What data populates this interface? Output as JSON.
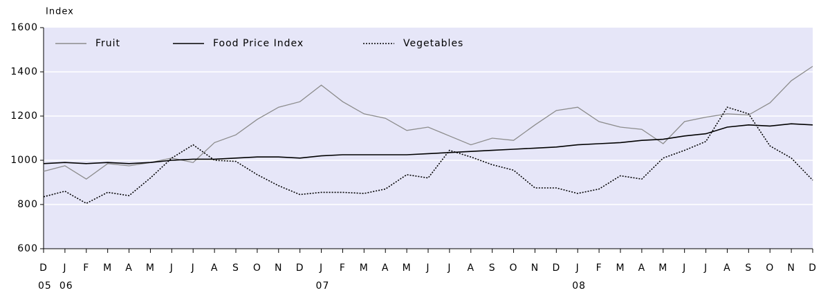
{
  "chart_data": {
    "type": "line",
    "y_label": "Index",
    "categories": [
      "D",
      "J",
      "F",
      "M",
      "A",
      "M",
      "J",
      "J",
      "A",
      "S",
      "O",
      "N",
      "D",
      "J",
      "F",
      "M",
      "A",
      "M",
      "J",
      "J",
      "A",
      "S",
      "O",
      "N",
      "D",
      "J",
      "F",
      "M",
      "A",
      "M",
      "J",
      "J",
      "A",
      "S",
      "O",
      "N",
      "D"
    ],
    "years": [
      "05",
      "06",
      null,
      null,
      null,
      null,
      null,
      null,
      null,
      null,
      null,
      null,
      null,
      "07",
      null,
      null,
      null,
      null,
      null,
      null,
      null,
      null,
      null,
      null,
      null,
      "08",
      null,
      null,
      null,
      null,
      null,
      null,
      null,
      null,
      null,
      null,
      null
    ],
    "ylim": [
      600,
      1600
    ],
    "yticks": [
      600,
      800,
      1000,
      1200,
      1400,
      1600
    ],
    "grid": true,
    "legend": "top-left",
    "series": [
      {
        "name": "Fruit",
        "color": "#8c8c8c",
        "style": "solid",
        "values": [
          950,
          975,
          915,
          985,
          975,
          990,
          1010,
          990,
          1080,
          1115,
          1185,
          1240,
          1265,
          1340,
          1265,
          1210,
          1190,
          1135,
          1150,
          1110,
          1070,
          1100,
          1090,
          1160,
          1225,
          1240,
          1175,
          1150,
          1140,
          1075,
          1175,
          1195,
          1210,
          1205,
          1260,
          1360,
          1425
        ]
      },
      {
        "name": "Food Price Index",
        "color": "#000000",
        "style": "solid",
        "values": [
          985,
          990,
          985,
          990,
          985,
          990,
          1000,
          1005,
          1005,
          1010,
          1015,
          1015,
          1010,
          1020,
          1025,
          1025,
          1025,
          1025,
          1030,
          1035,
          1040,
          1045,
          1050,
          1055,
          1060,
          1070,
          1075,
          1080,
          1090,
          1095,
          1110,
          1120,
          1150,
          1160,
          1155,
          1165,
          1160
        ]
      },
      {
        "name": "Vegetables",
        "color": "#000000",
        "style": "dotted",
        "values": [
          835,
          860,
          805,
          855,
          840,
          920,
          1010,
          1070,
          1000,
          995,
          935,
          885,
          845,
          855,
          855,
          850,
          870,
          935,
          920,
          1045,
          1015,
          980,
          955,
          875,
          875,
          850,
          870,
          930,
          915,
          1010,
          1045,
          1085,
          1240,
          1210,
          1065,
          1010,
          910
        ]
      }
    ]
  }
}
